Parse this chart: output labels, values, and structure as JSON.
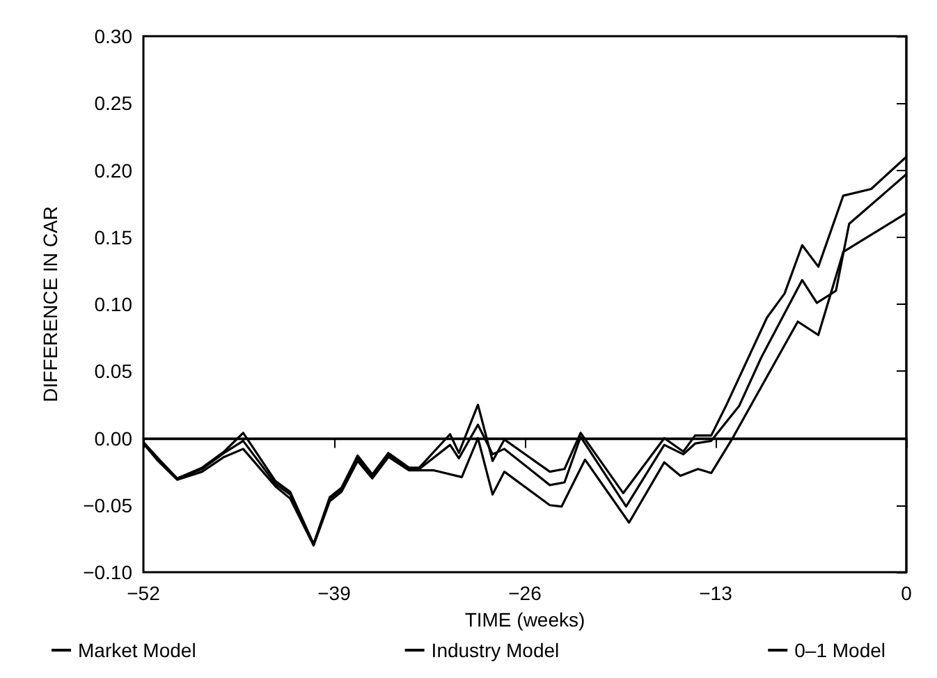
{
  "chart_data": {
    "type": "line",
    "xlabel": "TIME (weeks)",
    "ylabel": "DIFFERENCE IN CAR",
    "xlim": [
      -52,
      0
    ],
    "xticks": [
      {
        "value": -52,
        "label": "−52"
      },
      {
        "value": -39,
        "label": "−39"
      },
      {
        "value": -26,
        "label": "−26"
      },
      {
        "value": -13,
        "label": "−13"
      },
      0
    ],
    "ylim": [
      -0.1,
      0.3
    ],
    "yticks": [
      {
        "value": -0.1,
        "label": "−0.10"
      },
      {
        "value": -0.05,
        "label": "−0.05"
      },
      {
        "value": 0,
        "label": "0.00"
      },
      0.05,
      {
        "value": 0.1,
        "label": "0.10"
      },
      0.15,
      {
        "value": 0.2,
        "label": "0.20"
      },
      0.25,
      {
        "value": 0.3,
        "label": "0.30"
      }
    ],
    "grid": false,
    "legend": "bottom",
    "marker": "none",
    "line_style": "solid",
    "ref_lines": [
      {
        "axis": "y",
        "value": 0,
        "color": "#000000"
      }
    ],
    "series": [
      {
        "name": "Market Model",
        "color": "#000000",
        "x": [
          -52,
          -51,
          -49.7,
          -48,
          -46.5,
          -45.2,
          -43,
          -42,
          -40.4,
          -39.3,
          -38.5,
          -37.4,
          -36.4,
          -35.3,
          -33.9,
          -33.2,
          -31.1,
          -30.5,
          -29.2,
          -28.2,
          -27.4,
          -24.3,
          -23.3,
          -22.2,
          -19.3,
          -16.5,
          -15.2,
          -14.4,
          -13.3,
          -12.3,
          -9.5,
          -8.3,
          -7.1,
          -6.0,
          -4.3,
          -2.4,
          0
        ],
        "values": [
          -0.003,
          -0.015,
          -0.03,
          -0.022,
          -0.01,
          0.004,
          -0.032,
          -0.04,
          -0.079,
          -0.044,
          -0.037,
          -0.013,
          -0.027,
          -0.011,
          -0.022,
          -0.022,
          0.003,
          -0.011,
          0.025,
          -0.017,
          -0.001,
          -0.025,
          -0.023,
          0.004,
          -0.041,
          0.0,
          -0.01,
          0.002,
          0.002,
          0.024,
          0.09,
          0.108,
          0.144,
          0.128,
          0.181,
          0.186,
          0.21
        ]
      },
      {
        "name": "Industry Model",
        "color": "#000000",
        "x": [
          -52,
          -51,
          -49.7,
          -48,
          -46.5,
          -45.2,
          -43,
          -42,
          -40.4,
          -39.3,
          -38.5,
          -37.4,
          -36.4,
          -35.3,
          -33.9,
          -33.2,
          -31.1,
          -30.5,
          -29.2,
          -28.2,
          -27.4,
          -24.3,
          -23.3,
          -22.2,
          -19.1,
          -16.5,
          -15.2,
          -14.4,
          -13.3,
          -11.4,
          -9.9,
          -7.1,
          -6.1,
          -4.8,
          -3.9,
          0
        ],
        "values": [
          -0.003,
          -0.016,
          -0.03,
          -0.023,
          -0.011,
          -0.002,
          -0.034,
          -0.042,
          -0.079,
          -0.045,
          -0.038,
          -0.015,
          -0.028,
          -0.012,
          -0.023,
          -0.023,
          -0.005,
          -0.015,
          0.01,
          -0.012,
          -0.008,
          -0.035,
          -0.033,
          0.001,
          -0.051,
          -0.005,
          -0.012,
          -0.004,
          -0.002,
          0.024,
          0.06,
          0.118,
          0.101,
          0.11,
          0.16,
          0.197
        ]
      },
      {
        "name": "0–1 Model",
        "color": "#000000",
        "x": [
          -52,
          -51,
          -49.7,
          -48,
          -46.5,
          -45.2,
          -43,
          -42,
          -40.4,
          -39.3,
          -38.5,
          -37.4,
          -36.4,
          -35.3,
          -33.9,
          -32.2,
          -30.3,
          -29.2,
          -28.2,
          -27.4,
          -24.3,
          -23.5,
          -21.9,
          -18.9,
          -16.5,
          -15.4,
          -14.2,
          -13.3,
          -11.9,
          -7.4,
          -6.0,
          -4.3,
          0
        ],
        "values": [
          -0.004,
          -0.017,
          -0.031,
          -0.025,
          -0.014,
          -0.008,
          -0.036,
          -0.045,
          -0.08,
          -0.047,
          -0.04,
          -0.017,
          -0.03,
          -0.014,
          -0.024,
          -0.024,
          -0.029,
          0.0,
          -0.042,
          -0.025,
          -0.05,
          -0.051,
          -0.016,
          -0.063,
          -0.018,
          -0.028,
          -0.023,
          -0.026,
          -0.001,
          0.087,
          0.077,
          0.139,
          0.168
        ]
      }
    ]
  }
}
